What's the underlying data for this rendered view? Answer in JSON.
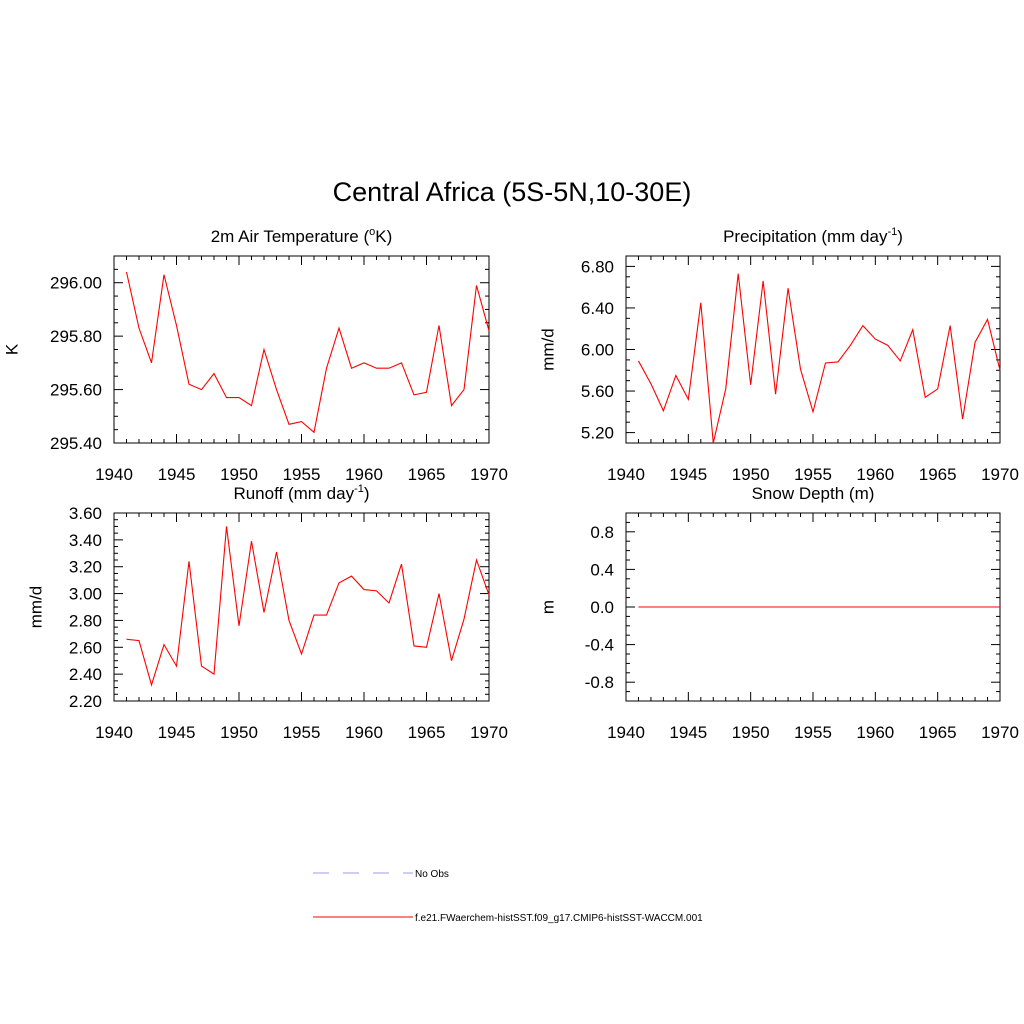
{
  "figure": {
    "title": "Central Africa (5S-5N,10-30E)"
  },
  "legend": {
    "items": [
      {
        "label": "No Obs",
        "color": "#9b9bf0",
        "style": "dashed"
      },
      {
        "label": "f.e21.FWaerchem-histSST.f09_g17.CMIP6-histSST-WACCM.001",
        "color": "#ff0000",
        "style": "solid"
      }
    ]
  },
  "chart_data": [
    {
      "type": "line",
      "title": {
        "main": "2m Air Temperature (",
        "sup": "o",
        "post": "K)"
      },
      "xlabel": "",
      "ylabel": "K",
      "xlim": [
        1940,
        1970
      ],
      "ylim": [
        295.4,
        296.1
      ],
      "xticks": [
        1940,
        1945,
        1950,
        1955,
        1960,
        1965,
        1970
      ],
      "yticks": [
        295.4,
        295.6,
        295.8,
        296.0
      ],
      "yticklabels": [
        "295.40",
        "295.60",
        "295.80",
        "296.00"
      ],
      "series": [
        {
          "color": "#ff0000",
          "x": [
            1941,
            1942,
            1943,
            1944,
            1945,
            1946,
            1947,
            1948,
            1949,
            1950,
            1951,
            1952,
            1953,
            1954,
            1955,
            1956,
            1957,
            1958,
            1959,
            1960,
            1961,
            1962,
            1963,
            1964,
            1965,
            1966,
            1967,
            1968,
            1969,
            1970
          ],
          "y": [
            296.04,
            295.83,
            295.7,
            296.03,
            295.84,
            295.62,
            295.6,
            295.66,
            295.57,
            295.57,
            295.54,
            295.75,
            295.6,
            295.47,
            295.48,
            295.44,
            295.68,
            295.83,
            295.68,
            295.7,
            295.68,
            295.68,
            295.7,
            295.58,
            295.59,
            295.84,
            295.54,
            295.6,
            295.99,
            295.82
          ]
        }
      ]
    },
    {
      "type": "line",
      "title": {
        "main": "Precipitation (mm day",
        "sup": "-1",
        "post": ")"
      },
      "xlabel": "",
      "ylabel": "mm/d",
      "xlim": [
        1940,
        1970
      ],
      "ylim": [
        5.1,
        6.9
      ],
      "xticks": [
        1940,
        1945,
        1950,
        1955,
        1960,
        1965,
        1970
      ],
      "yticks": [
        5.2,
        5.6,
        6.0,
        6.4,
        6.8
      ],
      "yticklabels": [
        "5.20",
        "5.60",
        "6.00",
        "6.40",
        "6.80"
      ],
      "series": [
        {
          "color": "#ff0000",
          "x": [
            1941,
            1942,
            1943,
            1944,
            1945,
            1946,
            1947,
            1948,
            1949,
            1950,
            1951,
            1952,
            1953,
            1954,
            1955,
            1956,
            1957,
            1958,
            1959,
            1960,
            1961,
            1962,
            1963,
            1964,
            1965,
            1966,
            1967,
            1968,
            1969,
            1970
          ],
          "y": [
            5.89,
            5.67,
            5.41,
            5.75,
            5.52,
            6.45,
            5.1,
            5.62,
            6.73,
            5.66,
            6.66,
            5.57,
            6.59,
            5.81,
            5.4,
            5.87,
            5.88,
            6.04,
            6.23,
            6.1,
            6.04,
            5.89,
            6.19,
            5.54,
            5.62,
            6.23,
            5.33,
            6.07,
            6.29,
            5.8
          ]
        }
      ]
    },
    {
      "type": "line",
      "title": {
        "main": "Runoff (mm day",
        "sup": "-1",
        "post": ")"
      },
      "xlabel": "",
      "ylabel": "mm/d",
      "xlim": [
        1940,
        1970
      ],
      "ylim": [
        2.2,
        3.6
      ],
      "xticks": [
        1940,
        1945,
        1950,
        1955,
        1960,
        1965,
        1970
      ],
      "yticks": [
        2.2,
        2.4,
        2.6,
        2.8,
        3.0,
        3.2,
        3.4,
        3.6
      ],
      "yticklabels": [
        "2.20",
        "2.40",
        "2.60",
        "2.80",
        "3.00",
        "3.20",
        "3.40",
        "3.60"
      ],
      "series": [
        {
          "color": "#ff0000",
          "x": [
            1941,
            1942,
            1943,
            1944,
            1945,
            1946,
            1947,
            1948,
            1949,
            1950,
            1951,
            1952,
            1953,
            1954,
            1955,
            1956,
            1957,
            1958,
            1959,
            1960,
            1961,
            1962,
            1963,
            1964,
            1965,
            1966,
            1967,
            1968,
            1969,
            1970
          ],
          "y": [
            2.66,
            2.65,
            2.32,
            2.62,
            2.46,
            3.24,
            2.46,
            2.4,
            3.5,
            2.76,
            3.39,
            2.86,
            3.31,
            2.8,
            2.55,
            2.84,
            2.84,
            3.08,
            3.13,
            3.03,
            3.02,
            2.93,
            3.22,
            2.61,
            2.6,
            3.0,
            2.5,
            2.81,
            3.25,
            2.99
          ]
        }
      ]
    },
    {
      "type": "line",
      "title": {
        "main": "Snow Depth (m)",
        "sup": "",
        "post": ""
      },
      "xlabel": "",
      "ylabel": "m",
      "xlim": [
        1940,
        1970
      ],
      "ylim": [
        -1.0,
        1.0
      ],
      "xticks": [
        1940,
        1945,
        1950,
        1955,
        1960,
        1965,
        1970
      ],
      "yticks": [
        -0.8,
        -0.4,
        0.0,
        0.4,
        0.8
      ],
      "yticklabels": [
        "-0.8",
        "-0.4",
        "0.0",
        "0.4",
        "0.8"
      ],
      "series": [
        {
          "color": "#ff0000",
          "x": [
            1941,
            1970
          ],
          "y": [
            0.0,
            0.0
          ]
        }
      ]
    }
  ]
}
